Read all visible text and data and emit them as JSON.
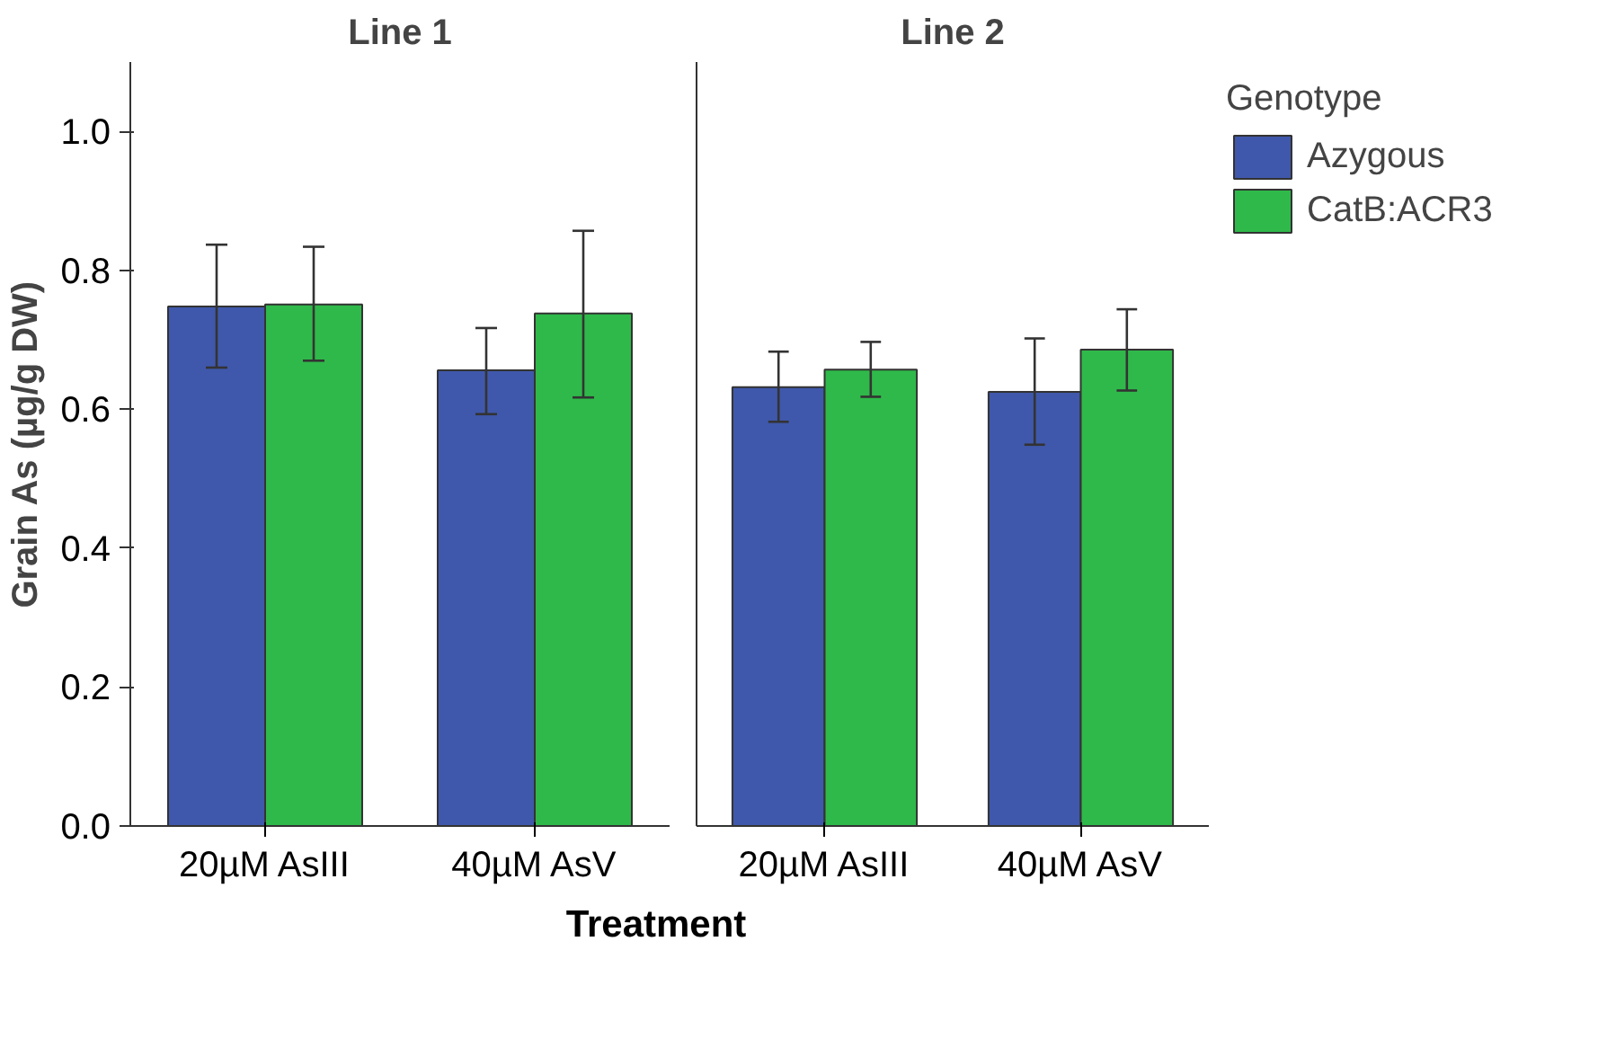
{
  "chart_data": [
    {
      "type": "bar",
      "title": "Line 1",
      "xlabel": "Treatment",
      "ylabel": "Grain As (µg/g DW)",
      "categories": [
        "20µM AsIII",
        "40µM AsV"
      ],
      "ylim": [
        0,
        1.1
      ],
      "yticks": [
        {
          "value": 0,
          "label": "0.0"
        },
        0.2,
        0.4,
        0.6,
        0.8,
        {
          "value": 1,
          "label": "1.0"
        }
      ],
      "grid": false,
      "legend": false,
      "series": [
        {
          "color": "#3f58ab",
          "values": [
            0.748,
            0.656
          ],
          "errors": [
            [
              0.66,
              0.837
            ],
            [
              0.593,
              0.717
            ]
          ]
        },
        {
          "color": "#2fb94a",
          "values": [
            0.751,
            0.738
          ],
          "errors": [
            [
              0.67,
              0.834
            ],
            [
              0.617,
              0.857
            ]
          ]
        }
      ]
    },
    {
      "type": "bar",
      "title": "Line 2",
      "legend_title": "Genotype",
      "categories": [
        "20µM AsIII",
        "40µM AsV"
      ],
      "ylim": [
        0,
        1.1
      ],
      "tick_labels": "x",
      "grid": false,
      "legend": "right",
      "series": [
        {
          "name": "Azygous",
          "color": "#3f58ab",
          "values": [
            0.632,
            0.625
          ],
          "errors": [
            [
              0.582,
              0.683
            ],
            [
              0.549,
              0.702
            ]
          ]
        },
        {
          "name": "CatB:ACR3",
          "color": "#2fb94a",
          "values": [
            0.657,
            0.686
          ],
          "errors": [
            [
              0.618,
              0.697
            ],
            [
              0.627,
              0.744
            ]
          ]
        }
      ]
    }
  ]
}
